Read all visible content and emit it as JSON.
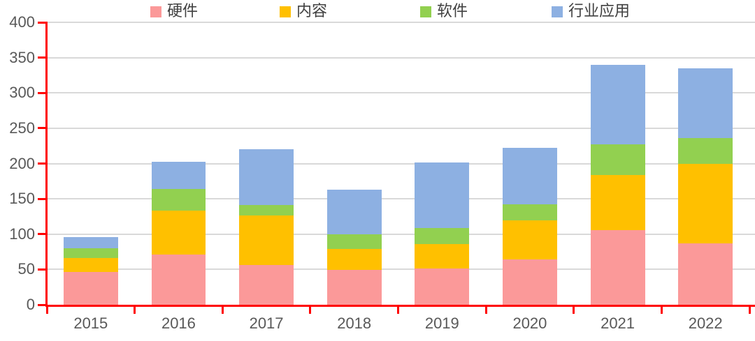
{
  "chart_data": {
    "type": "bar",
    "stacked": true,
    "title": "",
    "categories": [
      "2015",
      "2016",
      "2017",
      "2018",
      "2019",
      "2020",
      "2021",
      "2022"
    ],
    "series": [
      {
        "name": "硬件",
        "color": "#FB9999",
        "values": [
          46,
          71,
          56,
          49,
          51,
          64,
          106,
          87
        ]
      },
      {
        "name": "内容",
        "color": "#FFC000",
        "values": [
          20,
          62,
          70,
          30,
          35,
          56,
          78,
          113
        ]
      },
      {
        "name": "软件",
        "color": "#92D050",
        "values": [
          14,
          31,
          15,
          21,
          23,
          22,
          43,
          36
        ]
      },
      {
        "name": "行业应用",
        "color": "#8DB0E2",
        "values": [
          16,
          39,
          79,
          63,
          93,
          80,
          113,
          99
        ]
      }
    ],
    "totals": [
      96,
      203,
      220,
      163,
      202,
      222,
      340,
      335
    ],
    "xlabel": "",
    "ylabel": "",
    "ylim": [
      0,
      400
    ],
    "yticks": [
      0,
      50,
      100,
      150,
      200,
      250,
      300,
      350,
      400
    ],
    "grid": true,
    "legend_position": "top",
    "axis_color": "#FF0000",
    "gridline_color": "#D9D9D9",
    "tick_label_color": "#595959",
    "legend_text_color": "#404040"
  }
}
